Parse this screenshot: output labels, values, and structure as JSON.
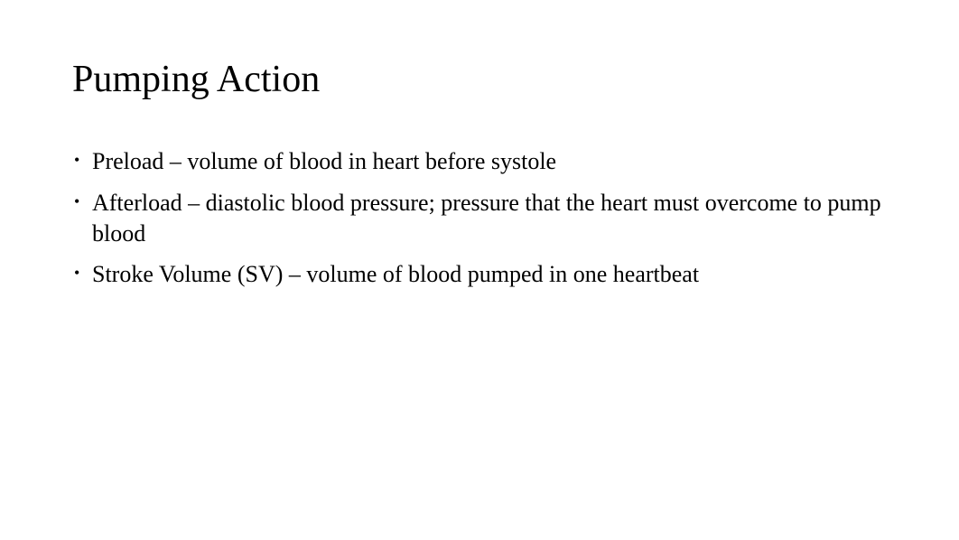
{
  "slide": {
    "title": "Pumping Action",
    "bullets": [
      "Preload – volume of blood in heart before systole",
      "Afterload – diastolic blood pressure; pressure that the heart must overcome to pump blood",
      "Stroke Volume (SV) – volume of blood pumped in one heartbeat"
    ],
    "title_fontsize": 42,
    "body_fontsize": 26,
    "text_color": "#000000",
    "background_color": "#ffffff",
    "font_family": "Times New Roman"
  }
}
